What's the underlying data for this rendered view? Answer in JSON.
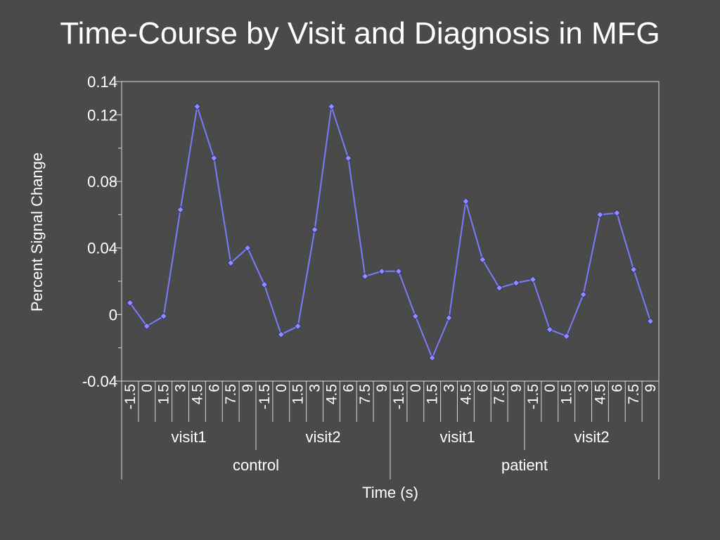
{
  "slide": {
    "background": "#4a4a4a"
  },
  "chart_data": {
    "type": "line",
    "title": "Time-Course by Visit and Diagnosis in MFG",
    "xlabel": "Time (s)",
    "ylabel": "Percent Signal Change",
    "ylim": [
      -0.04,
      0.14
    ],
    "yticks": [
      "-0.04",
      "0",
      "0.04",
      "0.08",
      "0.12",
      "0.14"
    ],
    "grid": false,
    "legend": "none",
    "line_color": "#7b7bff",
    "marker_color": "#8d8dff",
    "groups": [
      {
        "name": "control",
        "visits": [
          {
            "name": "visit1",
            "times": [
              "-1.5",
              "0",
              "1.5",
              "3",
              "4.5",
              "6",
              "7.5",
              "9"
            ],
            "values": [
              0.007,
              -0.007,
              -0.001,
              0.063,
              0.125,
              0.094,
              0.031,
              0.04
            ]
          },
          {
            "name": "visit2",
            "times": [
              "-1.5",
              "0",
              "1.5",
              "3",
              "4.5",
              "6",
              "7.5",
              "9"
            ],
            "values": [
              0.018,
              -0.012,
              -0.007,
              0.051,
              0.125,
              0.094,
              0.023,
              0.026
            ]
          }
        ]
      },
      {
        "name": "patient",
        "visits": [
          {
            "name": "visit1",
            "times": [
              "-1.5",
              "0",
              "1.5",
              "3",
              "4.5",
              "6",
              "7.5",
              "9"
            ],
            "values": [
              0.026,
              -0.001,
              -0.026,
              -0.002,
              0.068,
              0.033,
              0.016,
              0.019
            ]
          },
          {
            "name": "visit2",
            "times": [
              "-1.5",
              "0",
              "1.5",
              "3",
              "4.5",
              "6",
              "7.5",
              "9"
            ],
            "values": [
              0.021,
              -0.009,
              -0.013,
              0.012,
              0.06,
              0.061,
              0.027,
              -0.004
            ]
          }
        ]
      }
    ]
  }
}
